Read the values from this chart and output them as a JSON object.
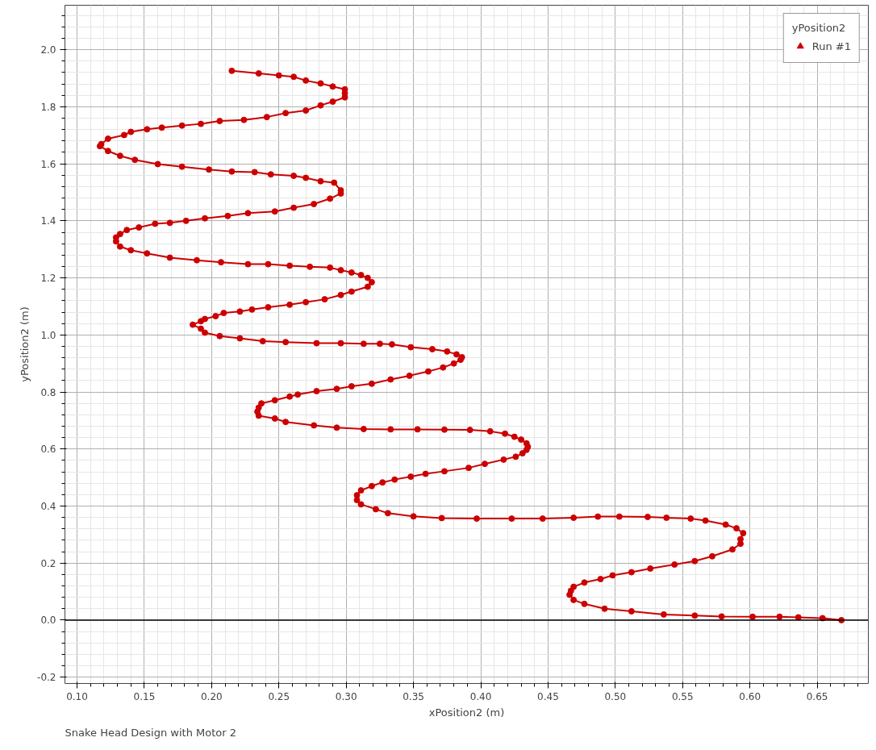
{
  "chart_data": {
    "type": "line",
    "xlabel": "xPosition2 (m)",
    "ylabel": "yPosition2 (m)",
    "legend_title": "yPosition2",
    "legend": "top right",
    "marker": "circle",
    "line_style": "solid",
    "grid": true,
    "annotations": [
      "Snake Head Design with Motor 2"
    ],
    "xlim": [
      0.091,
      0.688
    ],
    "ylim": [
      -0.222,
      2.156
    ],
    "xticks": [
      {
        "value": 0.1,
        "label": "0.10"
      },
      {
        "value": 0.15,
        "label": "0.15"
      },
      {
        "value": 0.2,
        "label": "0.20"
      },
      {
        "value": 0.25,
        "label": "0.25"
      },
      {
        "value": 0.3,
        "label": "0.30"
      },
      {
        "value": 0.35,
        "label": "0.35"
      },
      {
        "value": 0.4,
        "label": "0.40"
      },
      {
        "value": 0.45,
        "label": "0.45"
      },
      {
        "value": 0.5,
        "label": "0.50"
      },
      {
        "value": 0.55,
        "label": "0.55"
      },
      {
        "value": 0.6,
        "label": "0.60"
      },
      {
        "value": 0.65,
        "label": "0.65"
      }
    ],
    "yticks": [
      {
        "value": -0.2,
        "label": "-0.2"
      },
      {
        "value": 0,
        "label": "0.0"
      },
      {
        "value": 0.2,
        "label": "0.2"
      },
      {
        "value": 0.4,
        "label": "0.4"
      },
      {
        "value": 0.6,
        "label": "0.6"
      },
      {
        "value": 0.8,
        "label": "0.8"
      },
      {
        "value": 1,
        "label": "1.0"
      },
      {
        "value": 1.2,
        "label": "1.2"
      },
      {
        "value": 1.4,
        "label": "1.4"
      },
      {
        "value": 1.6,
        "label": "1.6"
      },
      {
        "value": 1.8,
        "label": "1.8"
      },
      {
        "value": 2,
        "label": "2.0"
      }
    ],
    "ref_lines": [
      {
        "axis": "y",
        "value": 0,
        "color": "#000000"
      }
    ],
    "series": [
      {
        "name": "Run #1",
        "color": "#cc0000",
        "x": [
          0.668,
          0.654,
          0.636,
          0.622,
          0.602,
          0.579,
          0.559,
          0.536,
          0.512,
          0.492,
          0.477,
          0.469,
          0.466,
          0.467,
          0.469,
          0.477,
          0.489,
          0.498,
          0.512,
          0.526,
          0.544,
          0.559,
          0.572,
          0.587,
          0.593,
          0.593,
          0.595,
          0.59,
          0.582,
          0.567,
          0.556,
          0.538,
          0.524,
          0.503,
          0.487,
          0.469,
          0.446,
          0.423,
          0.397,
          0.371,
          0.35,
          0.331,
          0.322,
          0.311,
          0.308,
          0.308,
          0.311,
          0.319,
          0.327,
          0.336,
          0.348,
          0.359,
          0.373,
          0.391,
          0.403,
          0.417,
          0.426,
          0.431,
          0.434,
          0.435,
          0.434,
          0.43,
          0.425,
          0.418,
          0.407,
          0.392,
          0.373,
          0.353,
          0.333,
          0.313,
          0.293,
          0.276,
          0.255,
          0.247,
          0.235,
          0.234,
          0.235,
          0.237,
          0.247,
          0.258,
          0.264,
          0.278,
          0.293,
          0.304,
          0.319,
          0.333,
          0.347,
          0.361,
          0.372,
          0.38,
          0.385,
          0.386,
          0.382,
          0.375,
          0.364,
          0.348,
          0.334,
          0.325,
          0.313,
          0.296,
          0.278,
          0.255,
          0.238,
          0.221,
          0.206,
          0.195,
          0.192,
          0.186,
          0.192,
          0.195,
          0.203,
          0.209,
          0.221,
          0.23,
          0.242,
          0.258,
          0.27,
          0.284,
          0.296,
          0.304,
          0.316,
          0.319,
          0.316,
          0.311,
          0.304,
          0.296,
          0.288,
          0.273,
          0.258,
          0.242,
          0.227,
          0.207,
          0.189,
          0.169,
          0.152,
          0.14,
          0.132,
          0.129,
          0.129,
          0.132,
          0.137,
          0.146,
          0.158,
          0.169,
          0.181,
          0.195,
          0.212,
          0.227,
          0.247,
          0.261,
          0.276,
          0.288,
          0.296,
          0.296,
          0.291,
          0.281,
          0.27,
          0.261,
          0.244,
          0.232,
          0.215,
          0.198,
          0.178,
          0.16,
          0.143,
          0.132,
          0.123,
          0.117,
          0.118,
          0.123,
          0.135,
          0.14,
          0.152,
          0.163,
          0.178,
          0.192,
          0.206,
          0.224,
          0.241,
          0.255,
          0.27,
          0.281,
          0.29,
          0.299,
          0.299,
          0.299,
          0.29,
          0.281,
          0.27,
          0.261,
          0.25,
          0.235,
          0.215
        ],
        "values": [
          0.0,
          0.007,
          0.01,
          0.012,
          0.012,
          0.013,
          0.016,
          0.02,
          0.031,
          0.04,
          0.057,
          0.071,
          0.089,
          0.103,
          0.117,
          0.132,
          0.144,
          0.157,
          0.168,
          0.181,
          0.195,
          0.207,
          0.224,
          0.248,
          0.268,
          0.284,
          0.305,
          0.322,
          0.335,
          0.349,
          0.356,
          0.359,
          0.362,
          0.363,
          0.363,
          0.359,
          0.356,
          0.356,
          0.356,
          0.358,
          0.364,
          0.375,
          0.389,
          0.406,
          0.421,
          0.438,
          0.455,
          0.47,
          0.483,
          0.493,
          0.503,
          0.513,
          0.522,
          0.534,
          0.548,
          0.563,
          0.573,
          0.585,
          0.597,
          0.608,
          0.62,
          0.633,
          0.643,
          0.654,
          0.662,
          0.667,
          0.668,
          0.669,
          0.669,
          0.67,
          0.675,
          0.683,
          0.695,
          0.707,
          0.717,
          0.731,
          0.745,
          0.76,
          0.771,
          0.784,
          0.791,
          0.803,
          0.811,
          0.82,
          0.829,
          0.844,
          0.857,
          0.872,
          0.886,
          0.9,
          0.913,
          0.922,
          0.932,
          0.942,
          0.95,
          0.957,
          0.967,
          0.969,
          0.969,
          0.971,
          0.971,
          0.975,
          0.978,
          0.988,
          0.996,
          1.008,
          1.022,
          1.036,
          1.048,
          1.056,
          1.066,
          1.077,
          1.082,
          1.089,
          1.097,
          1.106,
          1.115,
          1.125,
          1.14,
          1.152,
          1.169,
          1.185,
          1.2,
          1.21,
          1.219,
          1.227,
          1.236,
          1.239,
          1.243,
          1.248,
          1.248,
          1.255,
          1.262,
          1.271,
          1.286,
          1.297,
          1.31,
          1.328,
          1.342,
          1.354,
          1.368,
          1.377,
          1.39,
          1.393,
          1.4,
          1.409,
          1.417,
          1.427,
          1.433,
          1.446,
          1.459,
          1.478,
          1.496,
          1.507,
          1.534,
          1.539,
          1.551,
          1.558,
          1.563,
          1.571,
          1.573,
          1.58,
          1.59,
          1.599,
          1.614,
          1.628,
          1.645,
          1.662,
          1.669,
          1.688,
          1.701,
          1.712,
          1.721,
          1.727,
          1.734,
          1.74,
          1.75,
          1.754,
          1.764,
          1.778,
          1.787,
          1.805,
          1.818,
          1.833,
          1.847,
          1.861,
          1.871,
          1.882,
          1.892,
          1.905,
          1.91,
          1.917,
          1.926
        ]
      }
    ]
  }
}
